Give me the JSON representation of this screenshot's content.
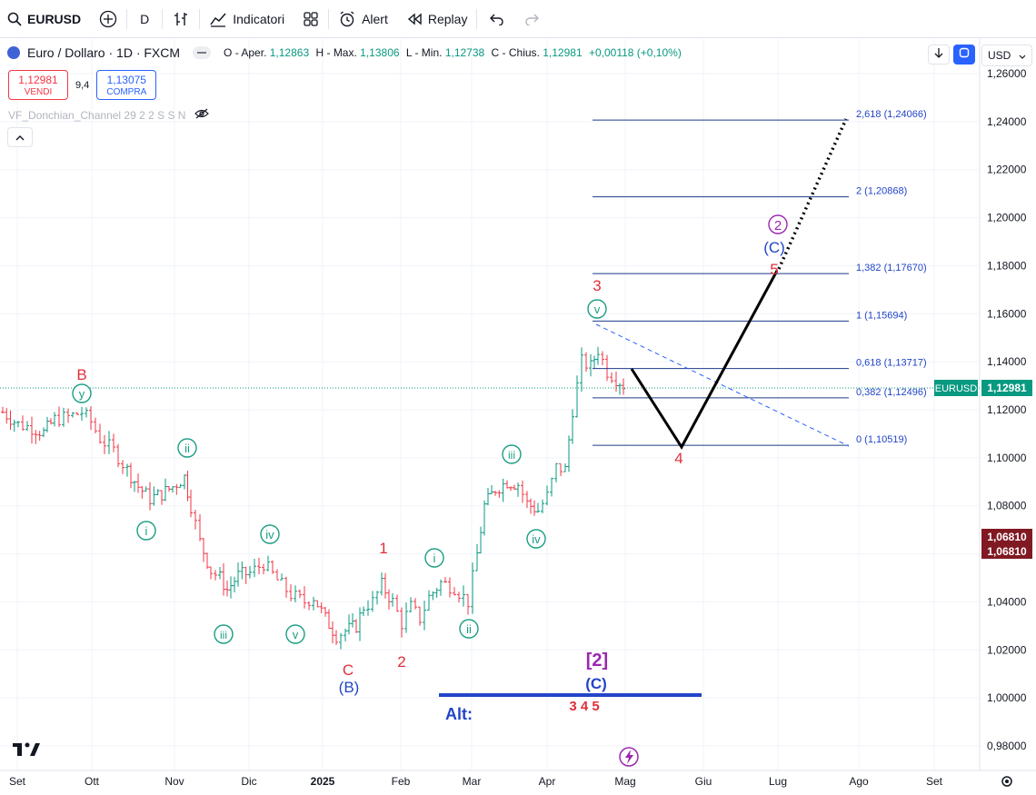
{
  "toolbar": {
    "symbol": "EURUSD",
    "interval": "D",
    "indicators_label": "Indicatori",
    "alert_label": "Alert",
    "replay_label": "Replay"
  },
  "legend": {
    "title": "Euro / Dollaro · 1D · FXCM",
    "open_label": "O - Aper.",
    "open": "1,12863",
    "high_label": "H - Max.",
    "high": "1,13806",
    "low_label": "L - Min.",
    "low": "1,12738",
    "close_label": "C - Chius.",
    "close": "1,12981",
    "change": "+0,00118 (+0,10%)"
  },
  "trade": {
    "sell_price": "1,12981",
    "sell_label": "VENDI",
    "spread": "9,4",
    "buy_price": "1,13075",
    "buy_label": "COMPRA"
  },
  "indicator": {
    "label": "VF_Donchian_Channel 29 2 2 S S N"
  },
  "currency": "USD",
  "price_axis": {
    "ticks": [
      "1,26000",
      "1,24000",
      "1,22000",
      "1,20000",
      "1,18000",
      "1,16000",
      "1,14000",
      "1,12000",
      "1,10000",
      "1,08000",
      "1,06000",
      "1,04000",
      "1,02000",
      "1,00000",
      "0,98000"
    ],
    "current_tag": "EURUSD",
    "current_price": "1,12981",
    "dark_tag_1": "1,06810",
    "dark_tag_2": "1,06810"
  },
  "time_axis": {
    "labels": [
      "Set",
      "Ott",
      "Nov",
      "Dic",
      "2025",
      "Feb",
      "Mar",
      "Apr",
      "Mag",
      "Giu",
      "Lug",
      "Ago",
      "Set"
    ]
  },
  "fib": [
    {
      "label": "2,618 (1,24066)",
      "price": 1.24066
    },
    {
      "label": "2 (1,20868)",
      "price": 1.20868
    },
    {
      "label": "1,382 (1,17670)",
      "price": 1.1767
    },
    {
      "label": "1 (1,15694)",
      "price": 1.15694
    },
    {
      "label": "0,618 (1,13717)",
      "price": 1.13717
    },
    {
      "label": "0,382 (1,12496)",
      "price": 1.12496
    },
    {
      "label": "0 (1,10519)",
      "price": 1.10519
    }
  ],
  "waves": {
    "B": "B",
    "C": "C",
    "B_paren": "(B)",
    "C_paren": "(C)",
    "C_paren_top": "(C)",
    "two_circle": "2",
    "bracket_2": "[2]",
    "n1": "1",
    "n2": "2",
    "n3": "3",
    "n4": "4",
    "n5": "5",
    "n345": "3 4 5",
    "y": "y",
    "i": "i",
    "ii": "ii",
    "iii": "iii",
    "iv": "iv",
    "v": "v",
    "alt": "Alt:"
  },
  "colors": {
    "up": "#089981",
    "down": "#f23645",
    "fib": "#1e3a8a",
    "wave_red": "#e0303a",
    "wave_green": "#1a9e82",
    "wave_blue": "#2245c8",
    "purple": "#9c27b0"
  }
}
